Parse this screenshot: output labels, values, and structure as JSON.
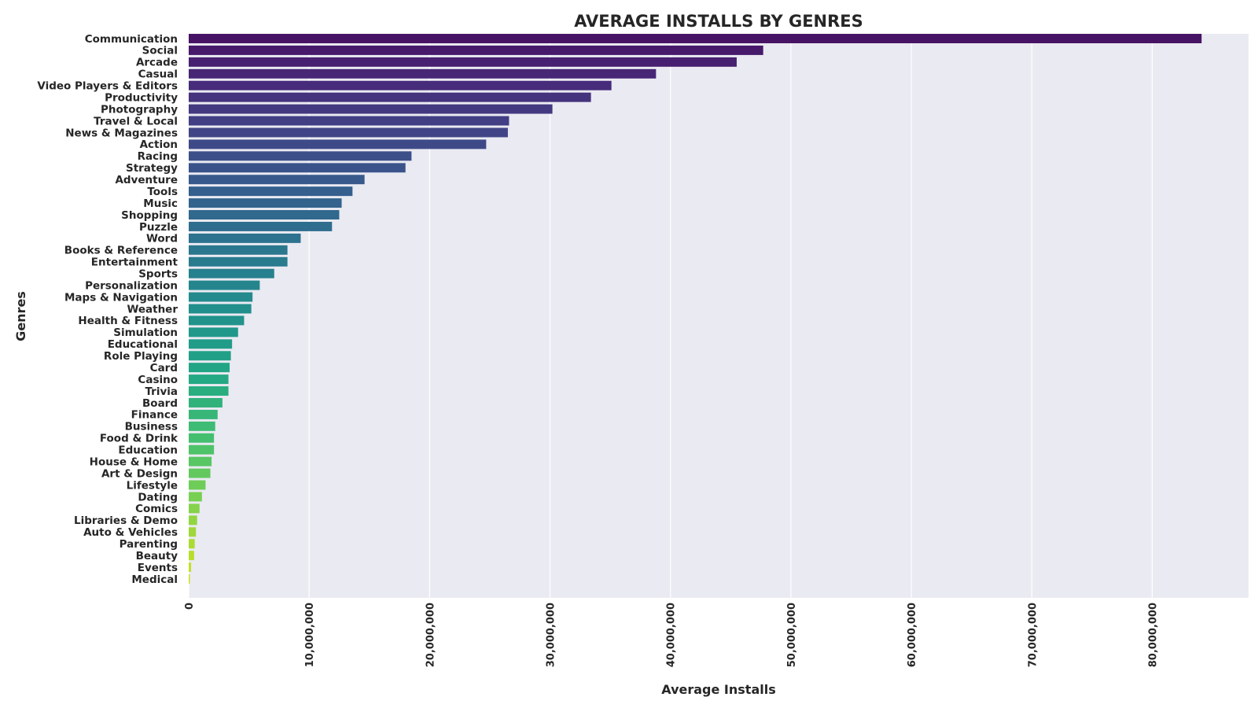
{
  "chart_data": {
    "type": "bar",
    "orientation": "horizontal",
    "title": "AVERAGE INSTALLS BY GENRES",
    "xlabel": "Average Installs",
    "ylabel": "Genres",
    "xlim": [
      0,
      88000000
    ],
    "x_ticks": [
      0,
      10000000,
      20000000,
      30000000,
      40000000,
      50000000,
      60000000,
      70000000,
      80000000
    ],
    "x_tick_labels": [
      "0",
      "10,000,000",
      "20,000,000",
      "30,000,000",
      "40,000,000",
      "50,000,000",
      "60,000,000",
      "70,000,000",
      "80,000,000"
    ],
    "grid": true,
    "palette": "viridis",
    "background_color": "#eaeaf2",
    "grid_color": "#ffffff",
    "categories": [
      "Communication",
      "Social",
      "Arcade",
      "Casual",
      "Video Players & Editors",
      "Productivity",
      "Photography",
      "Travel & Local",
      "News & Magazines",
      "Action",
      "Racing",
      "Strategy",
      "Adventure",
      "Tools",
      "Music",
      "Shopping",
      "Puzzle",
      "Word",
      "Books & Reference",
      "Entertainment",
      "Sports",
      "Personalization",
      "Maps & Navigation",
      "Weather",
      "Health & Fitness",
      "Simulation",
      "Educational",
      "Role Playing",
      "Card",
      "Casino",
      "Trivia",
      "Board",
      "Finance",
      "Business",
      "Food & Drink",
      "Education",
      "House & Home",
      "Art & Design",
      "Lifestyle",
      "Dating",
      "Comics",
      "Libraries & Demo",
      "Auto & Vehicles",
      "Parenting",
      "Beauty",
      "Events",
      "Medical"
    ],
    "values": [
      84100000,
      47700000,
      45500000,
      38800000,
      35100000,
      33400000,
      30200000,
      26600000,
      26500000,
      24700000,
      18500000,
      18000000,
      14600000,
      13600000,
      12700000,
      12500000,
      11900000,
      9300000,
      8200000,
      8200000,
      7100000,
      5900000,
      5300000,
      5200000,
      4600000,
      4100000,
      3600000,
      3500000,
      3400000,
      3300000,
      3300000,
      2800000,
      2400000,
      2200000,
      2100000,
      2100000,
      1900000,
      1800000,
      1400000,
      1100000,
      900000,
      700000,
      600000,
      500000,
      450000,
      200000,
      100000
    ]
  }
}
